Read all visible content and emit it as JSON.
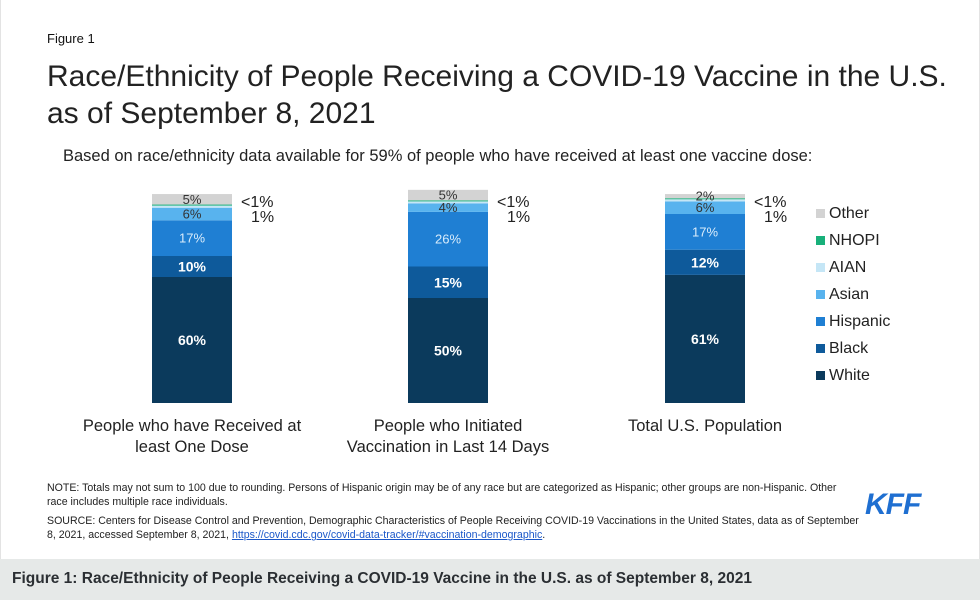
{
  "figure_label": "Figure 1",
  "caption": "Figure 1: Race/Ethnicity of People Receiving a COVID-19 Vaccine in the U.S. as of September 8, 2021",
  "note": "NOTE: Totals may not sum to 100 due to rounding. Persons of Hispanic origin may be of any race but are categorized as Hispanic; other groups are non-Hispanic. Other race includes multiple race individuals.",
  "source_text": "SOURCE: Centers for Disease Control and Prevention, Demographic Characteristics of People Receiving COVID-19 Vaccinations in the United States, data as of September 8, 2021, accessed September 8, 2021, ",
  "source_link": "https://covid.cdc.gov/covid-data-tracker/#vaccination-demographic",
  "source_end": ".",
  "logo": "KFF",
  "chart_data": {
    "type": "bar",
    "stacked": true,
    "title": "Race/Ethnicity of People Receiving a COVID-19 Vaccine in the U.S. as of September 8, 2021",
    "subtitle": "Based on race/ethnicity data available for 59% of people who have received at least one vaccine dose:",
    "categories": [
      [
        "People who have Received at",
        "least One Dose"
      ],
      [
        "People who Initiated",
        "Vaccination in Last 14 Days"
      ],
      [
        "Total U.S. Population"
      ]
    ],
    "series": [
      {
        "name": "White",
        "color": "#0b3a5c",
        "values": [
          60,
          50,
          61
        ],
        "labels": [
          "60%",
          "50%",
          "61%"
        ]
      },
      {
        "name": "Black",
        "color": "#0e5a9b",
        "values": [
          10,
          15,
          12
        ],
        "labels": [
          "10%",
          "15%",
          "12%"
        ]
      },
      {
        "name": "Hispanic",
        "color": "#1f7fd3",
        "values": [
          17,
          26,
          17
        ],
        "labels": [
          "17%",
          "26%",
          "17%"
        ]
      },
      {
        "name": "Asian",
        "color": "#58b3ee",
        "values": [
          6,
          4,
          6
        ],
        "labels": [
          "6%",
          "4%",
          "6%"
        ]
      },
      {
        "name": "AIAN",
        "color": "#c5e6f6",
        "values": [
          1,
          1,
          1
        ],
        "labels": [
          "1%",
          "1%",
          "1%"
        ]
      },
      {
        "name": "NHOPI",
        "color": "#18b07a",
        "values": [
          0.5,
          0.5,
          0.5
        ],
        "labels": [
          "<1%",
          "<1%",
          "<1%"
        ]
      },
      {
        "name": "Other",
        "color": "#d3d3d3",
        "values": [
          5,
          5,
          2
        ],
        "labels": [
          "5%",
          "5%",
          "2%"
        ]
      }
    ],
    "ylim": [
      0,
      100
    ],
    "legend": "right",
    "grid": false
  }
}
